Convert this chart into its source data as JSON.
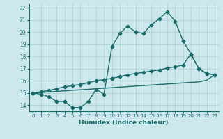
{
  "xlabel": "Humidex (Indice chaleur)",
  "bg_color": "#cce8ec",
  "grid_color": "#aacccc",
  "line_color": "#1a6b6b",
  "x_ticks": [
    0,
    1,
    2,
    3,
    4,
    5,
    6,
    7,
    8,
    9,
    10,
    11,
    12,
    13,
    14,
    15,
    16,
    17,
    18,
    19,
    20,
    21,
    22,
    23
  ],
  "y_ticks": [
    14,
    15,
    16,
    17,
    18,
    19,
    20,
    21,
    22
  ],
  "ylim": [
    13.5,
    22.3
  ],
  "xlim": [
    -0.5,
    23.5
  ],
  "line1_y": [
    15.0,
    14.9,
    14.7,
    14.3,
    14.3,
    13.8,
    13.8,
    14.3,
    15.3,
    14.9,
    18.8,
    19.9,
    20.5,
    20.0,
    19.9,
    20.6,
    21.1,
    21.7,
    20.9,
    19.3,
    18.2,
    17.0,
    16.6,
    16.5
  ],
  "line2_y": [
    15.0,
    15.1,
    15.2,
    15.35,
    15.5,
    15.6,
    15.7,
    15.85,
    16.0,
    16.1,
    16.2,
    16.35,
    16.5,
    16.6,
    16.7,
    16.8,
    16.9,
    17.05,
    17.15,
    17.3,
    18.2,
    17.0,
    16.6,
    16.5
  ],
  "line3_y": [
    15.0,
    15.04,
    15.09,
    15.13,
    15.17,
    15.22,
    15.26,
    15.3,
    15.35,
    15.39,
    15.43,
    15.48,
    15.52,
    15.57,
    15.61,
    15.65,
    15.7,
    15.74,
    15.78,
    15.83,
    15.87,
    15.91,
    16.05,
    16.5
  ],
  "marker_size": 2.5,
  "line_width": 1.0
}
